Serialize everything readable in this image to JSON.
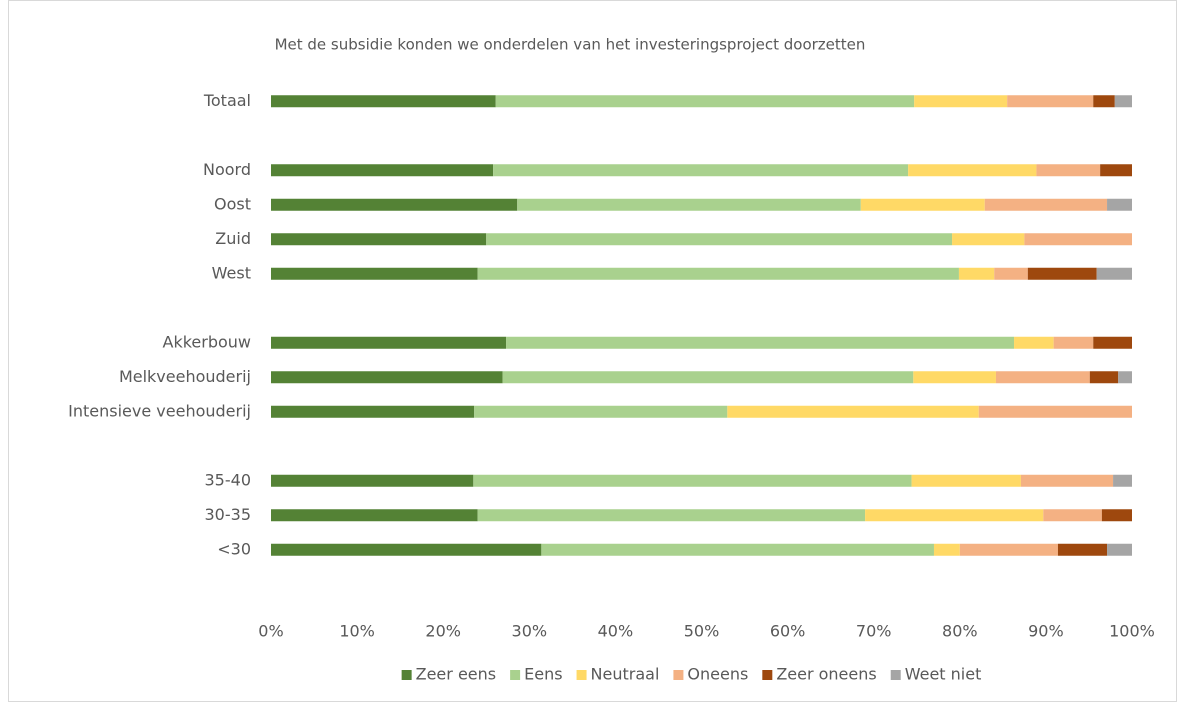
{
  "chart_data": {
    "type": "stacked-barh",
    "title": "Met de subsidie konden we onderdelen van het investeringsproject doorzetten",
    "categories": [
      "Totaal",
      null,
      "Noord",
      "Oost",
      "Zuid",
      "West",
      null,
      "Akkerbouw",
      "Melkveehouderij",
      "Intensieve veehouderij",
      null,
      "35-40",
      "30-35",
      "<30"
    ],
    "series": [
      {
        "name": "Zeer eens",
        "color": "#548235",
        "values": [
          26.1,
          null,
          25.8,
          28.6,
          25.0,
          24.0,
          null,
          27.3,
          26.9,
          23.6,
          null,
          23.5,
          24.0,
          31.4
        ]
      },
      {
        "name": "Eens",
        "color": "#a9d18e",
        "values": [
          48.6,
          null,
          48.2,
          39.9,
          54.1,
          55.9,
          null,
          59.0,
          47.7,
          29.4,
          null,
          50.9,
          45.0,
          45.6
        ]
      },
      {
        "name": "Neutraal",
        "color": "#ffd966",
        "values": [
          10.8,
          null,
          14.9,
          14.4,
          8.4,
          4.1,
          null,
          4.6,
          9.6,
          29.2,
          null,
          12.7,
          20.7,
          3.0
        ]
      },
      {
        "name": "Oneens",
        "color": "#f4b183",
        "values": [
          10.0,
          null,
          7.4,
          14.2,
          12.5,
          3.9,
          null,
          4.6,
          10.9,
          17.8,
          null,
          10.7,
          6.8,
          11.4
        ]
      },
      {
        "name": "Zeer oneens",
        "color": "#9e480e",
        "values": [
          2.5,
          null,
          3.7,
          0,
          0,
          8.0,
          null,
          4.5,
          3.3,
          0,
          null,
          0,
          3.5,
          5.7
        ]
      },
      {
        "name": "Weet niet",
        "color": "#a5a5a5",
        "values": [
          2.0,
          null,
          0,
          2.9,
          0,
          4.1,
          null,
          0,
          1.6,
          0,
          null,
          2.2,
          0,
          2.9
        ]
      }
    ],
    "xlim": [
      0,
      100
    ],
    "xticks": [
      {
        "value": 0,
        "label": "0%"
      },
      {
        "value": 10,
        "label": "10%"
      },
      {
        "value": 20,
        "label": "20%"
      },
      {
        "value": 30,
        "label": "30%"
      },
      {
        "value": 40,
        "label": "40%"
      },
      {
        "value": 50,
        "label": "50%"
      },
      {
        "value": 60,
        "label": "60%"
      },
      {
        "value": 70,
        "label": "70%"
      },
      {
        "value": 80,
        "label": "80%"
      },
      {
        "value": 90,
        "label": "90%"
      },
      {
        "value": 100,
        "label": "100%"
      }
    ],
    "grid": false,
    "legend": "bottom"
  }
}
